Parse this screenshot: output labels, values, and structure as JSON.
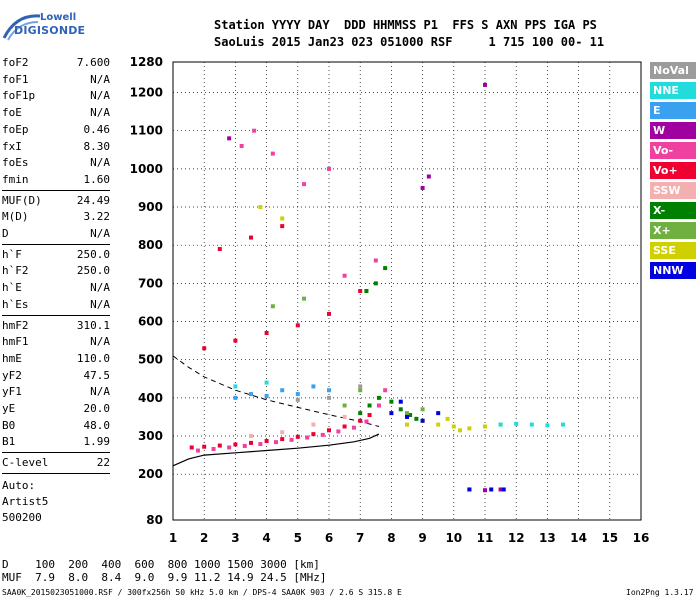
{
  "logo": {
    "line1": "Lowell",
    "line2": "DIGISONDE"
  },
  "header": {
    "line1": "Station YYYY DAY  DDD HHMMSS P1  FFS S AXN PPS IGA PS",
    "line2": "SaoLuis 2015 Jan23 023 051000 RSF     1 715 100 00- 11"
  },
  "params_group1": [
    {
      "name": "foF2",
      "value": "7.600"
    },
    {
      "name": "foF1",
      "value": "N/A"
    },
    {
      "name": "foF1p",
      "value": "N/A"
    },
    {
      "name": "foE",
      "value": "N/A"
    },
    {
      "name": "foEp",
      "value": "0.46"
    },
    {
      "name": "fxI",
      "value": "8.30"
    },
    {
      "name": "foEs",
      "value": "N/A"
    },
    {
      "name": "fmin",
      "value": "1.60"
    }
  ],
  "params_group2": [
    {
      "name": "MUF(D)",
      "value": "24.49"
    },
    {
      "name": "M(D)",
      "value": "3.22"
    },
    {
      "name": "D",
      "value": "N/A"
    }
  ],
  "params_group3": [
    {
      "name": "h`F",
      "value": "250.0"
    },
    {
      "name": "h`F2",
      "value": "250.0"
    },
    {
      "name": "h`E",
      "value": "N/A"
    },
    {
      "name": "h`Es",
      "value": "N/A"
    }
  ],
  "params_group4": [
    {
      "name": "hmF2",
      "value": "310.1"
    },
    {
      "name": "hmF1",
      "value": "N/A"
    },
    {
      "name": "hmE",
      "value": "110.0"
    },
    {
      "name": "yF2",
      "value": "47.5"
    },
    {
      "name": "yF1",
      "value": "N/A"
    },
    {
      "name": "yE",
      "value": "20.0"
    },
    {
      "name": "B0",
      "value": "48.0"
    },
    {
      "name": "B1",
      "value": "1.99"
    }
  ],
  "params_group5": [
    {
      "name": "C-level",
      "value": "22"
    }
  ],
  "autoscaling": {
    "line1": "Auto:",
    "line2": "Artist5",
    "line3": "500200"
  },
  "legend": [
    {
      "label": "NoVal",
      "color": "#9c9c9c"
    },
    {
      "label": "NNE",
      "color": "#22dcdc"
    },
    {
      "label": "E",
      "color": "#3aa0f0"
    },
    {
      "label": "W",
      "color": "#a000a0"
    },
    {
      "label": "Vo-",
      "color": "#f040a0"
    },
    {
      "label": "Vo+",
      "color": "#f00030"
    },
    {
      "label": "SSW",
      "color": "#f4b0b0"
    },
    {
      "label": "X-",
      "color": "#008000"
    },
    {
      "label": "X+",
      "color": "#70b040"
    },
    {
      "label": "SSE",
      "color": "#d0d000"
    },
    {
      "label": "NNW",
      "color": "#0000e0"
    }
  ],
  "muf_table": {
    "d_row": "D    100  200  400  600  800 1000 1500 3000 [km]",
    "muf_row": "MUF  7.9  8.0  8.4  9.0  9.9 11.2 14.9 24.5 [MHz]"
  },
  "footer": {
    "left": "SAA0K_2015023051000.RSF / 300fx256h 50 kHz 5.0 km / DPS-4 SAA0K 903 / 2.6 S 315.8 E",
    "right": "Ion2Png 1.3.17"
  },
  "chart_data": {
    "type": "scatter",
    "title": "",
    "xlabel": "",
    "ylabel": "",
    "xlim": [
      1,
      16
    ],
    "ylim": [
      80,
      1280
    ],
    "x_ticks": [
      1,
      2,
      3,
      4,
      5,
      6,
      7,
      8,
      9,
      10,
      11,
      12,
      13,
      14,
      15,
      16
    ],
    "y_ticks": [
      80,
      200,
      300,
      400,
      500,
      600,
      700,
      800,
      900,
      1000,
      1100,
      1200,
      1280
    ],
    "grid": true,
    "series": [
      {
        "name": "Vo+",
        "color": "#f00030",
        "points": [
          [
            1.6,
            270
          ],
          [
            2.0,
            272
          ],
          [
            2.5,
            275
          ],
          [
            3.0,
            278
          ],
          [
            3.5,
            282
          ],
          [
            4.0,
            287
          ],
          [
            4.5,
            292
          ],
          [
            5.0,
            298
          ],
          [
            5.5,
            305
          ],
          [
            6.0,
            315
          ],
          [
            6.5,
            325
          ],
          [
            7.0,
            340
          ],
          [
            7.3,
            355
          ],
          [
            2.0,
            530
          ],
          [
            3.0,
            550
          ],
          [
            4.0,
            570
          ],
          [
            5.0,
            590
          ],
          [
            6.0,
            620
          ],
          [
            7.0,
            680
          ],
          [
            2.5,
            790
          ],
          [
            3.5,
            820
          ],
          [
            4.5,
            850
          ]
        ]
      },
      {
        "name": "Vo-",
        "color": "#f040a0",
        "points": [
          [
            1.8,
            262
          ],
          [
            2.3,
            266
          ],
          [
            2.8,
            270
          ],
          [
            3.3,
            274
          ],
          [
            3.8,
            279
          ],
          [
            4.3,
            284
          ],
          [
            4.8,
            290
          ],
          [
            5.3,
            296
          ],
          [
            5.8,
            303
          ],
          [
            6.3,
            312
          ],
          [
            6.8,
            322
          ],
          [
            7.2,
            338
          ],
          [
            7.6,
            380
          ],
          [
            7.8,
            420
          ],
          [
            3.2,
            1060
          ],
          [
            3.6,
            1100
          ],
          [
            4.2,
            1040
          ],
          [
            5.2,
            960
          ],
          [
            6.0,
            1000
          ],
          [
            6.5,
            720
          ],
          [
            7.5,
            760
          ]
        ]
      },
      {
        "name": "X-",
        "color": "#008000",
        "points": [
          [
            7.0,
            360
          ],
          [
            7.3,
            380
          ],
          [
            7.6,
            400
          ],
          [
            8.0,
            390
          ],
          [
            8.3,
            370
          ],
          [
            8.6,
            355
          ],
          [
            7.5,
            700
          ],
          [
            7.2,
            680
          ],
          [
            7.8,
            740
          ],
          [
            8.8,
            345
          ]
        ]
      },
      {
        "name": "X+",
        "color": "#70b040",
        "points": [
          [
            6.5,
            380
          ],
          [
            7.0,
            420
          ],
          [
            8.5,
            360
          ],
          [
            9.0,
            370
          ],
          [
            4.2,
            640
          ],
          [
            5.2,
            660
          ]
        ]
      },
      {
        "name": "SSE",
        "color": "#d0d000",
        "points": [
          [
            8.5,
            330
          ],
          [
            9.0,
            340
          ],
          [
            9.5,
            330
          ],
          [
            10.0,
            325
          ],
          [
            10.5,
            320
          ],
          [
            11.0,
            325
          ],
          [
            11.5,
            330
          ],
          [
            9.8,
            345
          ],
          [
            10.2,
            315
          ],
          [
            3.8,
            900
          ],
          [
            4.5,
            870
          ]
        ]
      },
      {
        "name": "NNE",
        "color": "#22dcdc",
        "points": [
          [
            11.5,
            330
          ],
          [
            12.0,
            332
          ],
          [
            12.5,
            330
          ],
          [
            13.0,
            328
          ],
          [
            13.5,
            330
          ],
          [
            3.0,
            430
          ],
          [
            4.0,
            440
          ]
        ]
      },
      {
        "name": "E",
        "color": "#3aa0f0",
        "points": [
          [
            3.0,
            400
          ],
          [
            3.5,
            410
          ],
          [
            4.0,
            405
          ],
          [
            4.5,
            420
          ],
          [
            5.0,
            410
          ],
          [
            5.5,
            430
          ],
          [
            6.0,
            420
          ]
        ]
      },
      {
        "name": "W",
        "color": "#a000a0",
        "points": [
          [
            10.5,
            160
          ],
          [
            11.0,
            158
          ],
          [
            11.5,
            160
          ],
          [
            11.0,
            1220
          ],
          [
            9.0,
            950
          ],
          [
            9.2,
            980
          ],
          [
            2.8,
            1080
          ]
        ]
      },
      {
        "name": "NNW",
        "color": "#0000e0",
        "points": [
          [
            8.0,
            360
          ],
          [
            8.5,
            350
          ],
          [
            9.0,
            340
          ],
          [
            9.5,
            360
          ],
          [
            8.3,
            390
          ],
          [
            10.5,
            160
          ],
          [
            11.2,
            160
          ],
          [
            11.6,
            160
          ]
        ]
      },
      {
        "name": "SSW",
        "color": "#f4b0b0",
        "points": [
          [
            3.5,
            300
          ],
          [
            4.5,
            310
          ],
          [
            5.5,
            330
          ],
          [
            6.5,
            350
          ]
        ]
      },
      {
        "name": "NoVal",
        "color": "#9c9c9c",
        "points": [
          [
            5.0,
            395
          ],
          [
            6.0,
            400
          ],
          [
            7.0,
            430
          ]
        ]
      }
    ],
    "profile_curve": [
      [
        1.0,
        222
      ],
      [
        1.5,
        240
      ],
      [
        2.0,
        250
      ],
      [
        3.0,
        256
      ],
      [
        4.0,
        262
      ],
      [
        5.0,
        268
      ],
      [
        6.0,
        276
      ],
      [
        6.8,
        285
      ],
      [
        7.3,
        294
      ],
      [
        7.6,
        305
      ]
    ],
    "dashed_curve": [
      [
        1.0,
        510
      ],
      [
        1.5,
        480
      ],
      [
        2.0,
        455
      ],
      [
        3.0,
        420
      ],
      [
        4.0,
        395
      ],
      [
        5.0,
        375
      ],
      [
        6.0,
        356
      ],
      [
        7.0,
        338
      ],
      [
        7.6,
        325
      ]
    ]
  }
}
